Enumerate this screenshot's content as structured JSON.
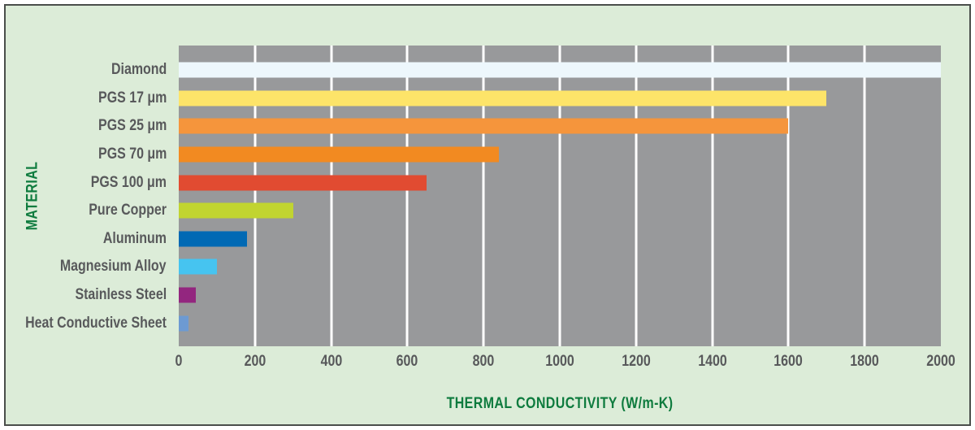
{
  "frame": {
    "background_color": "#dcecd8",
    "border_color": "#4a4e4b"
  },
  "styles": {
    "plot_background": "#98999b",
    "gridline_color": "#ffffff",
    "tick_label_color": "#58595b",
    "category_label_color": "#58595b",
    "axis_title_color": "#0e7b3e"
  },
  "chart_data": {
    "type": "bar",
    "orientation": "horizontal",
    "xlabel": "THERMAL CONDUCTIVITY (W/m-K)",
    "ylabel": "MATERIAL",
    "xlim": [
      0,
      2000
    ],
    "x_ticks": [
      0,
      200,
      400,
      600,
      800,
      1000,
      1200,
      1400,
      1600,
      1800,
      2000
    ],
    "grid": "vertical white gridlines every 200 on gray plot area",
    "legend": "none",
    "categories": [
      "Diamond",
      "PGS 17 μm",
      "PGS 25 μm",
      "PGS 70 μm",
      "PGS 100 μm",
      "Pure Copper",
      "Aluminum",
      "Magnesium Alloy",
      "Stainless Steel",
      "Heat Conductive Sheet"
    ],
    "values": [
      2000,
      1700,
      1600,
      840,
      650,
      300,
      180,
      100,
      45,
      25
    ],
    "bar_colors": [
      "#edf7fc",
      "#fde469",
      "#f5953c",
      "#f28a21",
      "#e14b31",
      "#c1d430",
      "#0169b4",
      "#46c4f0",
      "#93267f",
      "#6d9ad2"
    ]
  }
}
